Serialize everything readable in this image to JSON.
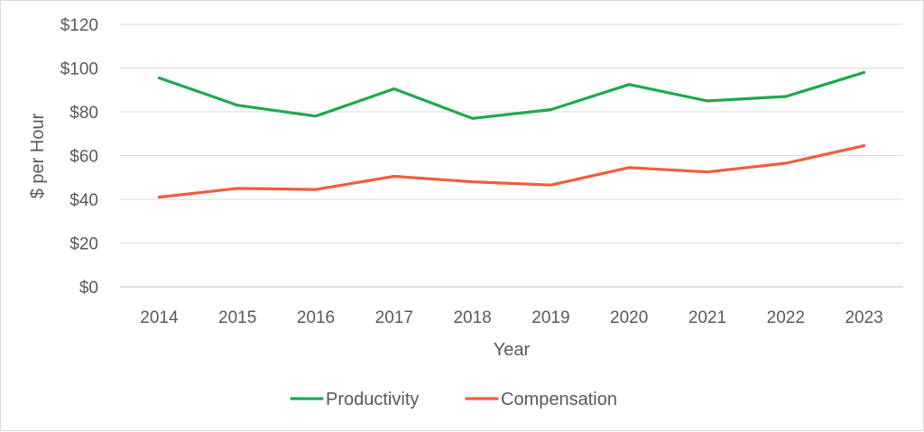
{
  "chart_data": {
    "type": "line",
    "title": "",
    "xlabel": "Year",
    "ylabel": "$ per Hour",
    "categories": [
      "2014",
      "2015",
      "2016",
      "2017",
      "2018",
      "2019",
      "2020",
      "2021",
      "2022",
      "2023"
    ],
    "ylim": [
      0,
      120
    ],
    "yticks": [
      0,
      20,
      40,
      60,
      80,
      100,
      120
    ],
    "ytick_labels": [
      "$0",
      "$20",
      "$40",
      "$60",
      "$80",
      "$100",
      "$120"
    ],
    "grid": "horizontal",
    "legend_position": "bottom",
    "series": [
      {
        "name": "Productivity",
        "color": "#21a750",
        "values": [
          95.5,
          83,
          78,
          90.5,
          77,
          81,
          92.5,
          85,
          87,
          98
        ]
      },
      {
        "name": "Compensation",
        "color": "#f05d3e",
        "values": [
          41,
          45,
          44.5,
          50.5,
          48,
          46.5,
          54.5,
          52.5,
          56.5,
          64.5
        ]
      }
    ]
  }
}
